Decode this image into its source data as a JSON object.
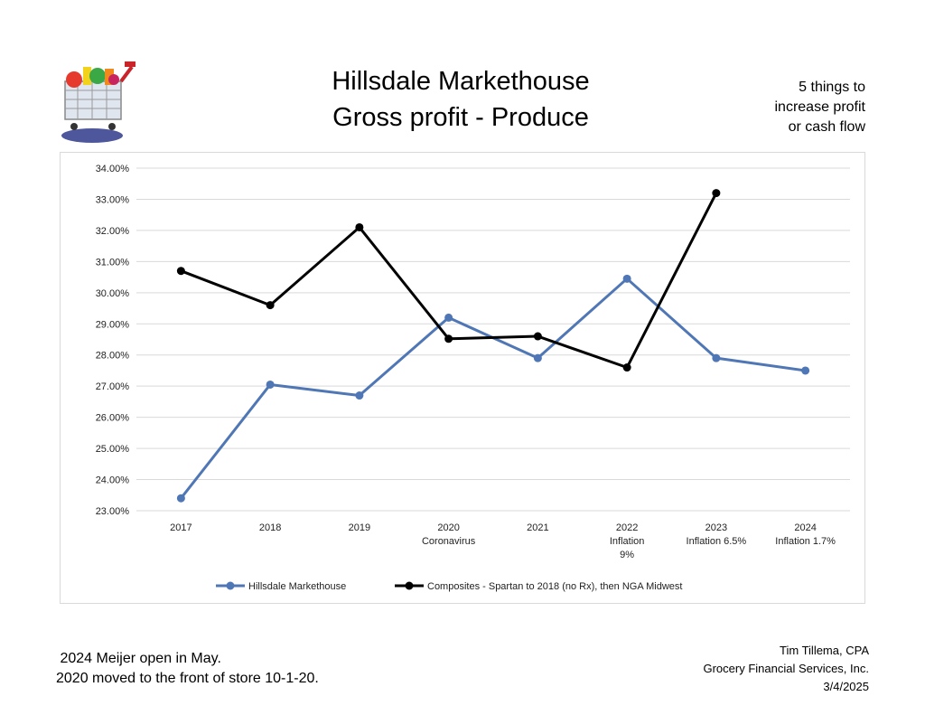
{
  "header": {
    "title_line1": "Hillsdale Markethouse",
    "title_line2": "Gross profit - Produce",
    "note_line1": "5 things to",
    "note_line2": "increase profit",
    "note_line3": "or cash flow"
  },
  "logo": {
    "icon": "shopping-cart-icon"
  },
  "chart_data": {
    "type": "line",
    "categories": [
      "2017",
      "2018",
      "2019",
      "2020",
      "2021",
      "2022",
      "2023",
      "2024"
    ],
    "category_sublabels": [
      "",
      "",
      "",
      "Coronavirus",
      "",
      "Inflation\n9%",
      "Inflation 6.5%",
      "Inflation 1.7%"
    ],
    "ylim": [
      23,
      34
    ],
    "yticks": [
      "23.00%",
      "24.00%",
      "25.00%",
      "26.00%",
      "27.00%",
      "28.00%",
      "29.00%",
      "30.00%",
      "31.00%",
      "32.00%",
      "33.00%",
      "34.00%"
    ],
    "grid": true,
    "legend_position": "bottom",
    "series": [
      {
        "name": "Hillsdale Markethouse",
        "color": "#4f76b5",
        "values": [
          23.4,
          27.05,
          26.7,
          29.2,
          27.9,
          30.45,
          27.9,
          27.5
        ]
      },
      {
        "name": "Composites - Spartan to 2018 (no Rx), then NGA Midwest",
        "color": "#000000",
        "values": [
          30.7,
          29.6,
          32.1,
          28.52,
          28.6,
          27.6,
          33.2,
          null
        ]
      }
    ]
  },
  "footer": {
    "left_line1": " 2024 Meijer open in May.",
    "left_line2": "2020 moved to the front of store 10-1-20.",
    "right_line1": "Tim Tillema, CPA",
    "right_line2": "Grocery Financial Services, Inc.",
    "right_line3": "3/4/2025"
  }
}
